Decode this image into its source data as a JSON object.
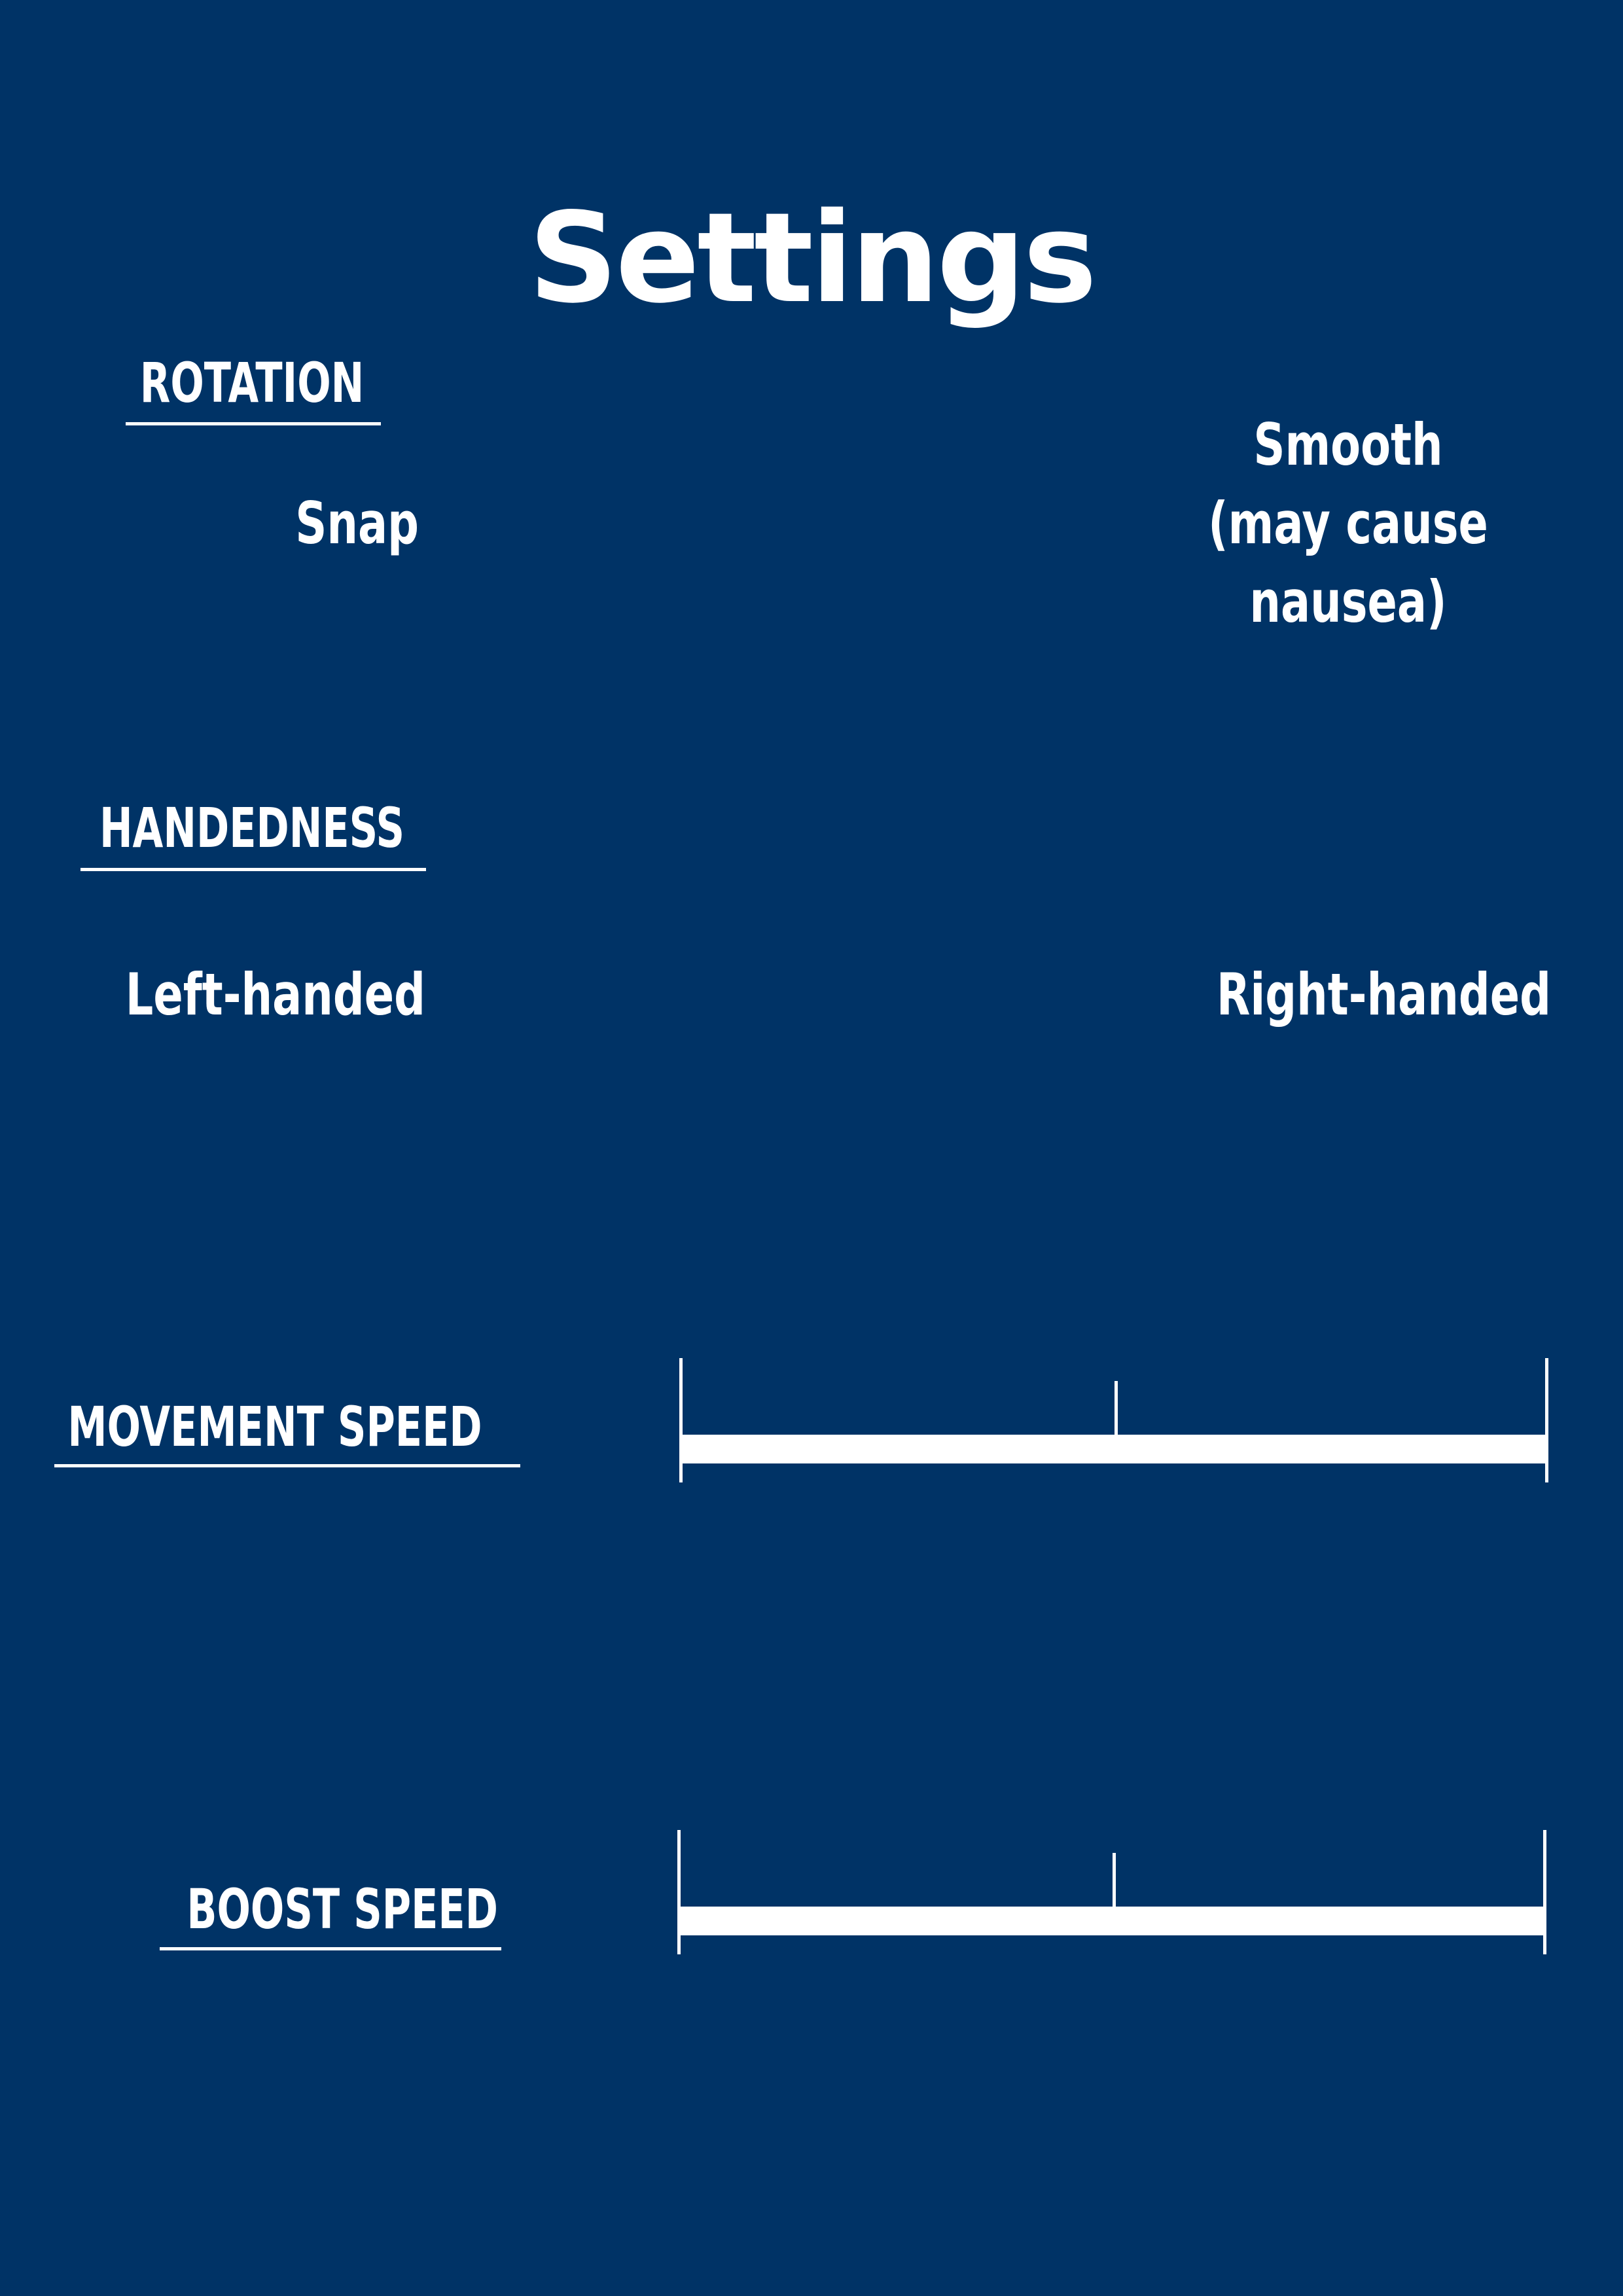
{
  "page": {
    "title": "Settings",
    "background_color": "#003366",
    "text_color": "#ffffff"
  },
  "rotation": {
    "label": "ROTATION",
    "options": {
      "snap": "Snap",
      "smooth_lines": [
        "Smooth",
        "(may cause",
        "nausea)"
      ]
    }
  },
  "handedness": {
    "label": "HANDEDNESS",
    "options": {
      "left": "Left-handed",
      "right": "Right-handed"
    }
  },
  "movement_speed": {
    "label": "MOVEMENT SPEED",
    "slider": {
      "min": 0,
      "max": 1,
      "ticks": [
        0,
        0.5,
        1
      ]
    }
  },
  "boost_speed": {
    "label": "BOOST SPEED",
    "slider": {
      "min": 0,
      "max": 1,
      "ticks": [
        0,
        0.5,
        1
      ]
    }
  }
}
